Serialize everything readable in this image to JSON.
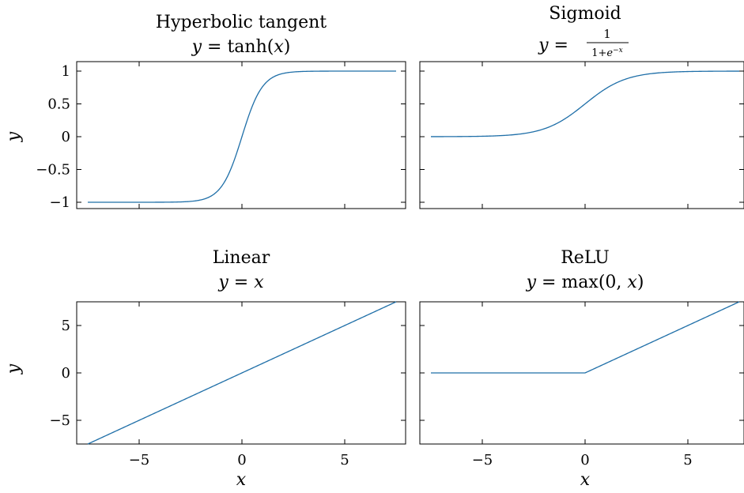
{
  "figure": {
    "curve_color": "#1f6fa8",
    "xlabel": "x",
    "ylabel": "y"
  },
  "chart_data": [
    {
      "type": "line",
      "title": "Hyperbolic tangent",
      "formula": "y = tanh(x)",
      "function": "tanh",
      "xlim": [
        -7.5,
        7.5
      ],
      "ylim": [
        -1,
        1
      ],
      "x": [
        -7.5,
        -6,
        -5,
        -4,
        -3,
        -2.5,
        -2,
        -1.5,
        -1,
        -0.5,
        0,
        0.5,
        1,
        1.5,
        2,
        2.5,
        3,
        4,
        5,
        6,
        7.5
      ],
      "y": [
        -1,
        -1,
        -0.9999,
        -0.9993,
        -0.9951,
        -0.9866,
        -0.964,
        -0.9051,
        -0.7616,
        -0.4621,
        0,
        0.4621,
        0.7616,
        0.9051,
        0.964,
        0.9866,
        0.9951,
        0.9993,
        0.9999,
        1,
        1
      ],
      "yticks": [
        1,
        0.5,
        0,
        -0.5,
        -1
      ],
      "ytick_labels": [
        "1",
        "0.5",
        "0",
        "−0.5",
        "−1"
      ],
      "xticks": [
        -5,
        0,
        5
      ],
      "xtick_labels": []
    },
    {
      "type": "line",
      "title": "Sigmoid",
      "formula": "y = 1/(1+e^(−x))",
      "function": "sigmoid",
      "xlim": [
        -7.5,
        7.5
      ],
      "ylim": [
        -1,
        1
      ],
      "x": [
        -7.5,
        -6,
        -5,
        -4,
        -3,
        -2,
        -1,
        0,
        1,
        2,
        3,
        4,
        5,
        6,
        7.5
      ],
      "y": [
        0.0006,
        0.0025,
        0.0067,
        0.018,
        0.0474,
        0.1192,
        0.2689,
        0.5,
        0.7311,
        0.8808,
        0.9526,
        0.982,
        0.9933,
        0.9975,
        0.9994
      ],
      "yticks": [
        1,
        0.5,
        0,
        -0.5,
        -1
      ],
      "ytick_labels": [],
      "xticks": [
        -5,
        0,
        5
      ],
      "xtick_labels": []
    },
    {
      "type": "line",
      "title": "Linear",
      "formula": "y = x",
      "function": "linear",
      "xlim": [
        -7.5,
        7.5
      ],
      "ylim": [
        -7.5,
        7.5
      ],
      "x": [
        -7.5,
        7.5
      ],
      "y": [
        -7.5,
        7.5
      ],
      "yticks": [
        5,
        0,
        -5
      ],
      "ytick_labels": [
        "5",
        "0",
        "−5"
      ],
      "xticks": [
        -5,
        0,
        5
      ],
      "xtick_labels": [
        "−5",
        "0",
        "5"
      ]
    },
    {
      "type": "line",
      "title": "ReLU",
      "formula": "y = max(0, x)",
      "function": "relu",
      "xlim": [
        -7.5,
        7.5
      ],
      "ylim": [
        -7.5,
        7.5
      ],
      "x": [
        -7.5,
        0,
        7.5
      ],
      "y": [
        0,
        0,
        7.5
      ],
      "yticks": [
        5,
        0,
        -5
      ],
      "ytick_labels": [],
      "xticks": [
        -5,
        0,
        5
      ],
      "xtick_labels": [
        "−5",
        "0",
        "5"
      ]
    }
  ]
}
